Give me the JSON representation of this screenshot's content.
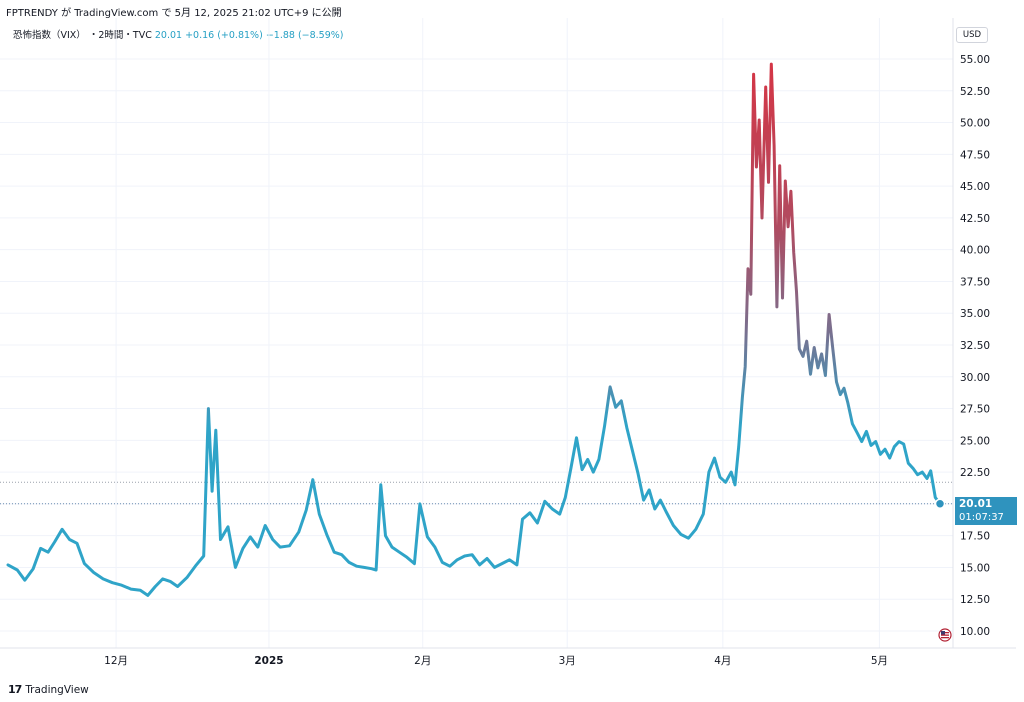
{
  "header": {
    "text": "FPTRENDY が TradingView.com で 5月 12, 2025 21:02 UTC+9 に公開"
  },
  "legend": {
    "symbol": "恐怖指数（VIX）",
    "interval": "・2時間・TVC",
    "last": "20.01",
    "change": "+0.16 (+0.81%)",
    "change2": "−1.88 (−8.59%)"
  },
  "currency": "USD",
  "price_tag": {
    "price": "20.01",
    "countdown": "01:07:37"
  },
  "footer": {
    "brand": "TradingView",
    "logo": "17"
  },
  "colors": {
    "low": "#2fa4c8",
    "mid": "#7a6f8e",
    "high": "#d53545",
    "grid": "#f0f3fa",
    "dotted": "#6a8caf"
  },
  "chart_data": {
    "type": "line",
    "title": "",
    "ylim": [
      8.5,
      57.5
    ],
    "yticks": [
      "55.00",
      "52.50",
      "50.00",
      "47.50",
      "45.00",
      "42.50",
      "40.00",
      "37.50",
      "35.00",
      "32.50",
      "30.00",
      "27.50",
      "25.00",
      "22.50",
      "20.00",
      "17.50",
      "15.00",
      "12.50",
      "10.00"
    ],
    "xticks": [
      {
        "label": "12月",
        "t": 0.116
      },
      {
        "label": "2025",
        "t": 0.28
      },
      {
        "label": "2月",
        "t": 0.445
      },
      {
        "label": "3月",
        "t": 0.6
      },
      {
        "label": "4月",
        "t": 0.767
      },
      {
        "label": "5月",
        "t": 0.935
      }
    ],
    "reference_level": 21.7,
    "last_value": 20.01,
    "series": [
      {
        "values": [
          [
            0.0,
            15.2
          ],
          [
            0.01,
            14.8
          ],
          [
            0.018,
            14.0
          ],
          [
            0.027,
            14.9
          ],
          [
            0.035,
            16.5
          ],
          [
            0.043,
            16.2
          ],
          [
            0.05,
            17.0
          ],
          [
            0.058,
            18.0
          ],
          [
            0.066,
            17.2
          ],
          [
            0.074,
            16.9
          ],
          [
            0.082,
            15.3
          ],
          [
            0.092,
            14.6
          ],
          [
            0.102,
            14.1
          ],
          [
            0.112,
            13.8
          ],
          [
            0.122,
            13.6
          ],
          [
            0.132,
            13.3
          ],
          [
            0.142,
            13.2
          ],
          [
            0.15,
            12.8
          ],
          [
            0.158,
            13.5
          ],
          [
            0.166,
            14.1
          ],
          [
            0.174,
            13.9
          ],
          [
            0.182,
            13.5
          ],
          [
            0.192,
            14.2
          ],
          [
            0.202,
            15.2
          ],
          [
            0.21,
            15.9
          ],
          [
            0.215,
            27.5
          ],
          [
            0.219,
            21.0
          ],
          [
            0.223,
            25.8
          ],
          [
            0.228,
            17.2
          ],
          [
            0.236,
            18.2
          ],
          [
            0.244,
            15.0
          ],
          [
            0.252,
            16.5
          ],
          [
            0.26,
            17.4
          ],
          [
            0.268,
            16.6
          ],
          [
            0.276,
            18.3
          ],
          [
            0.284,
            17.2
          ],
          [
            0.292,
            16.6
          ],
          [
            0.302,
            16.7
          ],
          [
            0.312,
            17.8
          ],
          [
            0.32,
            19.5
          ],
          [
            0.327,
            21.9
          ],
          [
            0.334,
            19.2
          ],
          [
            0.342,
            17.6
          ],
          [
            0.35,
            16.2
          ],
          [
            0.358,
            16.0
          ],
          [
            0.366,
            15.4
          ],
          [
            0.374,
            15.1
          ],
          [
            0.382,
            15.0
          ],
          [
            0.39,
            14.9
          ],
          [
            0.395,
            14.8
          ],
          [
            0.4,
            21.5
          ],
          [
            0.405,
            17.5
          ],
          [
            0.412,
            16.6
          ],
          [
            0.42,
            16.2
          ],
          [
            0.428,
            15.8
          ],
          [
            0.436,
            15.3
          ],
          [
            0.442,
            20.0
          ],
          [
            0.45,
            17.4
          ],
          [
            0.458,
            16.6
          ],
          [
            0.466,
            15.4
          ],
          [
            0.474,
            15.1
          ],
          [
            0.482,
            15.6
          ],
          [
            0.49,
            15.9
          ],
          [
            0.498,
            16.0
          ],
          [
            0.506,
            15.2
          ],
          [
            0.514,
            15.7
          ],
          [
            0.522,
            15.0
          ],
          [
            0.53,
            15.3
          ],
          [
            0.538,
            15.6
          ],
          [
            0.546,
            15.2
          ],
          [
            0.552,
            18.8
          ],
          [
            0.56,
            19.3
          ],
          [
            0.568,
            18.5
          ],
          [
            0.576,
            20.2
          ],
          [
            0.584,
            19.6
          ],
          [
            0.592,
            19.2
          ],
          [
            0.598,
            20.5
          ],
          [
            0.604,
            22.8
          ],
          [
            0.61,
            25.2
          ],
          [
            0.616,
            22.7
          ],
          [
            0.622,
            23.5
          ],
          [
            0.628,
            22.5
          ],
          [
            0.634,
            23.5
          ],
          [
            0.64,
            26.1
          ],
          [
            0.646,
            29.2
          ],
          [
            0.652,
            27.6
          ],
          [
            0.658,
            28.1
          ],
          [
            0.664,
            26.0
          ],
          [
            0.67,
            24.2
          ],
          [
            0.676,
            22.4
          ],
          [
            0.682,
            20.3
          ],
          [
            0.688,
            21.1
          ],
          [
            0.694,
            19.6
          ],
          [
            0.7,
            20.3
          ],
          [
            0.706,
            19.4
          ],
          [
            0.714,
            18.3
          ],
          [
            0.722,
            17.6
          ],
          [
            0.73,
            17.3
          ],
          [
            0.738,
            18.0
          ],
          [
            0.746,
            19.2
          ],
          [
            0.752,
            22.5
          ],
          [
            0.758,
            23.6
          ],
          [
            0.764,
            22.1
          ],
          [
            0.77,
            21.7
          ],
          [
            0.776,
            22.5
          ],
          [
            0.78,
            21.5
          ],
          [
            0.784,
            24.5
          ],
          [
            0.788,
            28.4
          ],
          [
            0.791,
            30.8
          ],
          [
            0.794,
            38.5
          ],
          [
            0.797,
            36.5
          ],
          [
            0.8,
            53.8
          ],
          [
            0.803,
            46.5
          ],
          [
            0.806,
            50.2
          ],
          [
            0.809,
            42.5
          ],
          [
            0.813,
            52.8
          ],
          [
            0.816,
            45.3
          ],
          [
            0.819,
            54.6
          ],
          [
            0.822,
            48.2
          ],
          [
            0.825,
            35.5
          ],
          [
            0.828,
            46.6
          ],
          [
            0.831,
            36.2
          ],
          [
            0.834,
            45.4
          ],
          [
            0.837,
            41.8
          ],
          [
            0.84,
            44.6
          ],
          [
            0.843,
            39.8
          ],
          [
            0.846,
            36.7
          ],
          [
            0.849,
            32.2
          ],
          [
            0.853,
            31.6
          ],
          [
            0.857,
            32.8
          ],
          [
            0.861,
            30.2
          ],
          [
            0.865,
            32.3
          ],
          [
            0.869,
            30.7
          ],
          [
            0.873,
            31.8
          ],
          [
            0.877,
            30.1
          ],
          [
            0.881,
            34.9
          ],
          [
            0.885,
            32.2
          ],
          [
            0.889,
            29.6
          ],
          [
            0.893,
            28.6
          ],
          [
            0.897,
            29.1
          ],
          [
            0.901,
            28.0
          ],
          [
            0.906,
            26.3
          ],
          [
            0.911,
            25.6
          ],
          [
            0.916,
            24.9
          ],
          [
            0.921,
            25.7
          ],
          [
            0.926,
            24.6
          ],
          [
            0.931,
            24.9
          ],
          [
            0.936,
            23.9
          ],
          [
            0.941,
            24.3
          ],
          [
            0.946,
            23.6
          ],
          [
            0.951,
            24.5
          ],
          [
            0.956,
            24.9
          ],
          [
            0.961,
            24.7
          ],
          [
            0.966,
            23.2
          ],
          [
            0.971,
            22.8
          ],
          [
            0.976,
            22.3
          ],
          [
            0.981,
            22.5
          ],
          [
            0.986,
            22.0
          ],
          [
            0.99,
            22.6
          ],
          [
            0.995,
            20.5
          ],
          [
            1.0,
            20.01
          ]
        ]
      }
    ]
  }
}
